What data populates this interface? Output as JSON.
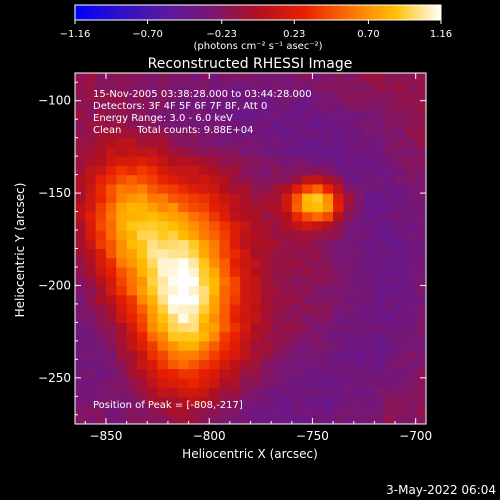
{
  "chart_data": {
    "type": "heatmap",
    "title": "Reconstructed RHESSI Image",
    "xlabel": "Heliocentric X (arcsec)",
    "ylabel": "Heliocentric Y (arcsec)",
    "xlim": [
      -865,
      -695
    ],
    "ylim": [
      -275,
      -85
    ],
    "x_ticks": [
      -850,
      -800,
      -750,
      -700
    ],
    "y_ticks": [
      -100,
      -150,
      -200,
      -250
    ],
    "x_tick_labels": [
      "−850",
      "−800",
      "−750",
      "−700"
    ],
    "y_tick_labels": [
      "−100",
      "−150",
      "−200",
      "−250"
    ],
    "colorbar": {
      "range": [
        -1.16,
        1.16
      ],
      "ticks": [
        -1.16,
        -0.7,
        -0.23,
        0.23,
        0.7,
        1.16
      ],
      "tick_labels": [
        "−1.16",
        "−0.70",
        "−0.23",
        "0.23",
        "0.70",
        "1.16"
      ],
      "unit_label": "(photons cm⁻² s⁻¹ asec⁻²)",
      "colormap": [
        "#0000ff",
        "#3010c8",
        "#5a18a0",
        "#7a1670",
        "#b01020",
        "#e82000",
        "#ff7000",
        "#ffc000",
        "#ffffff"
      ]
    },
    "annotations": [
      "15-Nov-2005 03:38:28.000 to 03:44:28.000",
      "Detectors: 3F 4F 5F 6F 7F 8F, Att 0",
      "Energy Range: 3.0 - 6.0 keV",
      "Clean     Total counts: 9.88E+04"
    ],
    "peak_label": "Position of Peak = [-808,-217]",
    "peak": [
      -808,
      -217
    ],
    "sources": [
      {
        "x": -812,
        "y": -205,
        "intensity": 1.16,
        "sx": 18,
        "sy": 38
      },
      {
        "x": -842,
        "y": -160,
        "intensity": 0.75,
        "sx": 16,
        "sy": 28
      },
      {
        "x": -748,
        "y": -155,
        "intensity": 1.1,
        "sx": 9,
        "sy": 8
      }
    ]
  },
  "footer": {
    "date": "3-May-2022 06:04"
  }
}
